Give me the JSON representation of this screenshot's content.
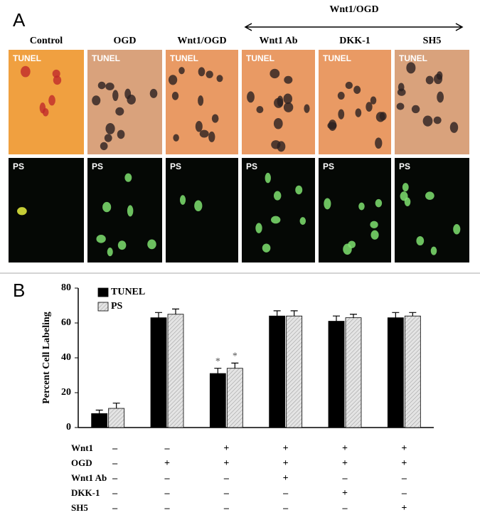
{
  "panel_a": {
    "label": "A",
    "group_header": "Wnt1/OGD",
    "columns": [
      "Control",
      "OGD",
      "Wnt1/OGD",
      "Wnt1 Ab",
      "DKK-1",
      "SH5"
    ],
    "row_labels": [
      "TUNEL",
      "PS"
    ]
  },
  "panel_b_label": "B",
  "chart_data": {
    "type": "bar",
    "ylabel": "Percent Cell Labeling",
    "categories": [
      null,
      null,
      null,
      null,
      null,
      null
    ],
    "series": [
      {
        "name": "TUNEL",
        "color": "#000000",
        "hatch": false,
        "values": [
          8,
          63,
          31,
          64,
          61,
          63
        ],
        "errors": [
          2,
          3,
          3,
          3,
          3,
          3
        ],
        "significance": [
          null,
          null,
          "*",
          null,
          null,
          null
        ]
      },
      {
        "name": "PS",
        "color": "#e4e4e4",
        "hatch": true,
        "values": [
          11,
          65,
          34,
          64,
          63,
          64
        ],
        "errors": [
          3,
          3,
          3,
          3,
          2,
          2
        ],
        "significance": [
          null,
          null,
          "*",
          null,
          null,
          null
        ]
      }
    ],
    "ylim": [
      0,
      80
    ],
    "yticks": [
      0,
      20,
      40,
      60,
      80
    ],
    "grid": false,
    "legend": "top-left"
  },
  "conditions": {
    "rows": [
      {
        "label": "Wnt1",
        "signs": [
          "–",
          "–",
          "+",
          "+",
          "+",
          "+"
        ]
      },
      {
        "label": "OGD",
        "signs": [
          "–",
          "+",
          "+",
          "+",
          "+",
          "+"
        ]
      },
      {
        "label": "Wnt1 Ab",
        "signs": [
          "–",
          "–",
          "–",
          "+",
          "–",
          "–"
        ]
      },
      {
        "label": "DKK-1",
        "signs": [
          "–",
          "–",
          "–",
          "–",
          "+",
          "–"
        ]
      },
      {
        "label": "SH5",
        "signs": [
          "–",
          "–",
          "–",
          "–",
          "–",
          "+"
        ]
      }
    ]
  }
}
